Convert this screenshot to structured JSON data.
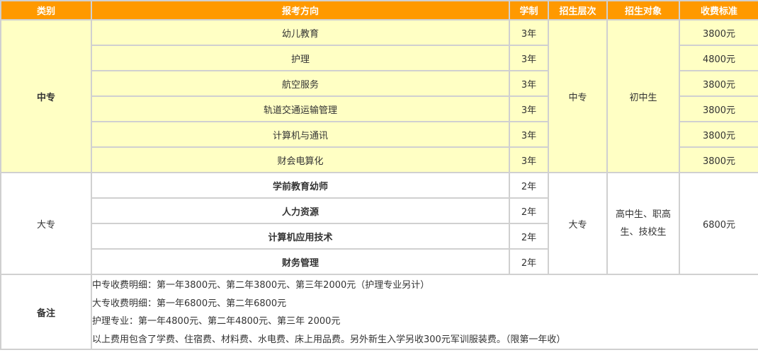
{
  "headers": [
    "类别",
    "报考方向",
    "学制",
    "招生层次",
    "招生对象",
    "收费标准"
  ],
  "zhongzhuan": {
    "category": "中专",
    "level": "中专",
    "target": "初中生",
    "rows": [
      {
        "major": "幼儿教育",
        "years": "3年",
        "fee": "3800元"
      },
      {
        "major": "护理",
        "years": "3年",
        "fee": "4800元"
      },
      {
        "major": "航空服务",
        "years": "3年",
        "fee": "3800元"
      },
      {
        "major": "轨道交通运输管理",
        "years": "3年",
        "fee": "3800元"
      },
      {
        "major": "计算机与通讯",
        "years": "3年",
        "fee": "3800元"
      },
      {
        "major": "财会电算化",
        "years": "3年",
        "fee": "3800元"
      }
    ]
  },
  "dazhuan": {
    "category": "大专",
    "level": "大专",
    "target": "高中生、职高生、技校生",
    "fee": "6800元",
    "rows": [
      {
        "major": "学前教育幼师",
        "years": "2年"
      },
      {
        "major": "人力资源",
        "years": "2年"
      },
      {
        "major": "计算机应用技术",
        "years": "2年"
      },
      {
        "major": "财务管理",
        "years": "2年"
      }
    ]
  },
  "notes": {
    "label": "备注",
    "lines": [
      "中专收费明细：第一年3800元、第二年3800元、第三年2000元（护理专业另计）",
      "大专收费明细：第一年6800元、第二年6800元",
      "护理专业：第一年4800元、第二年4800元、第三年 2000元",
      "以上费用包含了学费、住宿费、材料费、水电费、床上用品费。另外新生入学另收300元军训服装费。（限第一年收）"
    ]
  },
  "colors": {
    "header": "#ff9900",
    "zhongzhuan_bg": "#ffffc4",
    "border": "#d0d0d0"
  }
}
